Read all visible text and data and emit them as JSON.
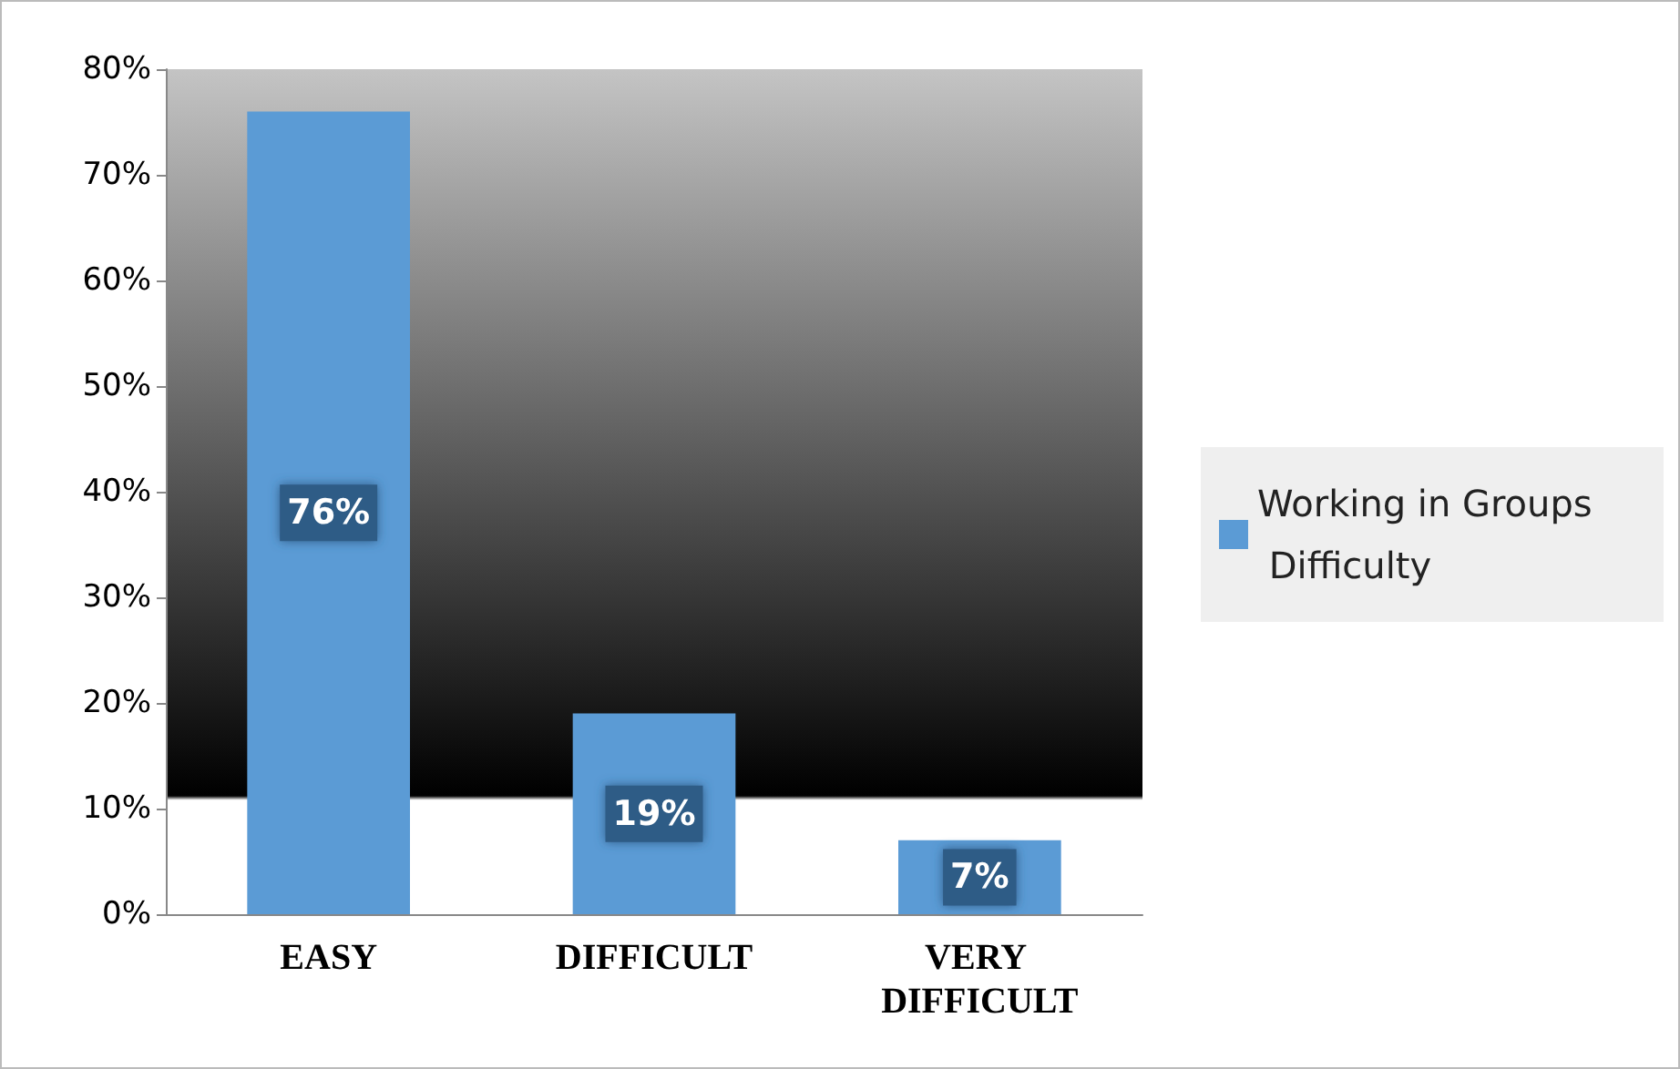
{
  "chart_data": {
    "type": "bar",
    "categories": [
      "EASY",
      "DIFFICULT",
      "VERY DIFFICULT"
    ],
    "series": [
      {
        "name": "Working in Groups Difficulty",
        "color": "#5b9bd5",
        "values": [
          76,
          19,
          7
        ],
        "value_labels": [
          "76%",
          "19%",
          "7%"
        ]
      }
    ],
    "ylim": [
      0,
      80
    ],
    "yticks": [
      {
        "value": 0,
        "label": "0%"
      },
      {
        "value": 10,
        "label": "10%"
      },
      {
        "value": 20,
        "label": "20%"
      },
      {
        "value": 30,
        "label": "30%"
      },
      {
        "value": 40,
        "label": "40%"
      },
      {
        "value": 50,
        "label": "50%"
      },
      {
        "value": 60,
        "label": "60%"
      },
      {
        "value": 70,
        "label": "70%"
      },
      {
        "value": 80,
        "label": "80%"
      }
    ],
    "grid": false,
    "legend": "right"
  }
}
